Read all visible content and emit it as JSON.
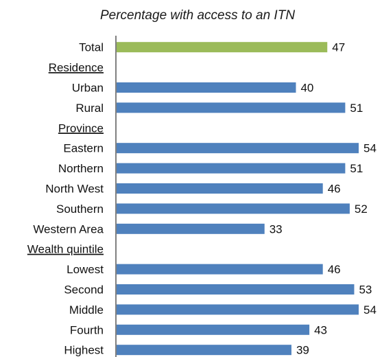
{
  "chart_data": {
    "type": "bar",
    "orientation": "horizontal",
    "title": "Percentage with access to an ITN",
    "xlabel": "",
    "ylabel": "",
    "xlim": [
      0,
      54
    ],
    "grid": false,
    "legend": "none",
    "colors": {
      "total": "#9bbb59",
      "default": "#4f81bd",
      "axis": "#000000"
    },
    "rows": [
      {
        "label": "Total",
        "value": 47,
        "kind": "total"
      },
      {
        "label": "Residence",
        "kind": "heading"
      },
      {
        "label": "Urban",
        "value": 40,
        "kind": "bar"
      },
      {
        "label": "Rural",
        "value": 51,
        "kind": "bar"
      },
      {
        "label": "Province",
        "kind": "heading"
      },
      {
        "label": "Eastern",
        "value": 54,
        "kind": "bar"
      },
      {
        "label": "Northern",
        "value": 51,
        "kind": "bar"
      },
      {
        "label": "North West",
        "value": 46,
        "kind": "bar"
      },
      {
        "label": "Southern",
        "value": 52,
        "kind": "bar"
      },
      {
        "label": "Western Area",
        "value": 33,
        "kind": "bar"
      },
      {
        "label": "Wealth quintile",
        "kind": "heading"
      },
      {
        "label": "Lowest",
        "value": 46,
        "kind": "bar"
      },
      {
        "label": "Second",
        "value": 53,
        "kind": "bar"
      },
      {
        "label": "Middle",
        "value": 54,
        "kind": "bar"
      },
      {
        "label": "Fourth",
        "value": 43,
        "kind": "bar"
      },
      {
        "label": "Highest",
        "value": 39,
        "kind": "bar"
      }
    ]
  }
}
